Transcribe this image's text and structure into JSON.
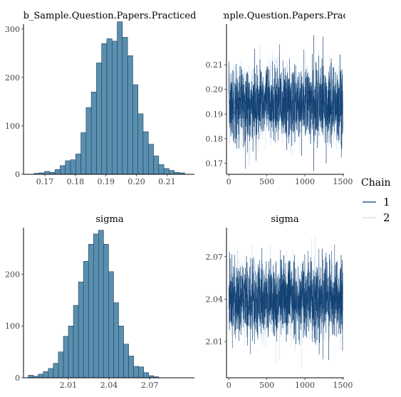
{
  "colors": {
    "hist_fill": "#5a8fb0",
    "hist_stroke": "#1f3f56",
    "chain1": "#0f3f72",
    "chain2": "#c9dcec",
    "axis": "#000000"
  },
  "legend": {
    "title": "Chain",
    "items": [
      {
        "label": "1",
        "color": "#0f3f72"
      },
      {
        "label": "2",
        "color": "#c9dcec"
      }
    ]
  },
  "chart_data": [
    {
      "type": "bar",
      "kind": "histogram",
      "title": "b_Sample.Question.Papers.Practiced",
      "xlim": [
        0.163,
        0.219
      ],
      "ylim": [
        0,
        310
      ],
      "xticks": [
        0.17,
        0.18,
        0.19,
        0.2,
        0.21
      ],
      "xtick_labels": [
        "0.17",
        "0.18",
        "0.19",
        "0.20",
        "0.21"
      ],
      "yticks": [
        0,
        100,
        200,
        300
      ],
      "ytick_labels": [
        "0",
        "100",
        "200",
        "300"
      ],
      "bin_start": 0.1665,
      "bin_width": 0.0017,
      "counts": [
        2,
        3,
        6,
        4,
        10,
        18,
        28,
        30,
        42,
        86,
        138,
        170,
        230,
        270,
        280,
        275,
        315,
        283,
        245,
        185,
        125,
        88,
        62,
        38,
        20,
        12,
        8,
        4,
        3
      ]
    },
    {
      "type": "line",
      "kind": "trace",
      "title": "b_Sample.Question.Papers.Practiced",
      "xlim": [
        -30,
        1515
      ],
      "ylim": [
        0.1655,
        0.2265
      ],
      "xticks": [
        0,
        500,
        1000,
        1500
      ],
      "xtick_labels": [
        "0",
        "500",
        "1000",
        "1500"
      ],
      "yticks": [
        0.17,
        0.18,
        0.19,
        0.2,
        0.21
      ],
      "ytick_labels": [
        "0.17",
        "0.18",
        "0.19",
        "0.20",
        "0.21"
      ],
      "n_iter": 1500,
      "mean": 0.194,
      "sd": 0.0074,
      "series": [
        {
          "name": "1",
          "color": "#0f3f72"
        },
        {
          "name": "2",
          "color": "#c9dcec"
        }
      ]
    },
    {
      "type": "bar",
      "kind": "histogram",
      "title": "sigma",
      "xlim": [
        1.977,
        2.103
      ],
      "ylim": [
        0,
        290
      ],
      "xticks": [
        2.01,
        2.04,
        2.07
      ],
      "xtick_labels": [
        "2.01",
        "2.04",
        "2.07"
      ],
      "yticks": [
        0,
        100,
        200
      ],
      "ytick_labels": [
        "0",
        "100",
        "200"
      ],
      "bin_start": 1.9805,
      "bin_width": 0.0037,
      "counts": [
        5,
        3,
        7,
        12,
        18,
        28,
        50,
        80,
        100,
        140,
        185,
        225,
        258,
        278,
        285,
        258,
        205,
        145,
        100,
        65,
        42,
        22,
        21,
        10,
        4,
        2
      ]
    },
    {
      "type": "line",
      "kind": "trace",
      "title": "sigma",
      "xlim": [
        -30,
        1515
      ],
      "ylim": [
        1.9845,
        2.0905
      ],
      "xticks": [
        0,
        500,
        1000,
        1500
      ],
      "xtick_labels": [
        "0",
        "500",
        "1000",
        "1500"
      ],
      "yticks": [
        2.01,
        2.04,
        2.07
      ],
      "ytick_labels": [
        "2.01",
        "2.04",
        "2.07"
      ],
      "n_iter": 1500,
      "mean": 2.04,
      "sd": 0.0135,
      "series": [
        {
          "name": "1",
          "color": "#0f3f72"
        },
        {
          "name": "2",
          "color": "#c9dcec"
        }
      ]
    }
  ]
}
